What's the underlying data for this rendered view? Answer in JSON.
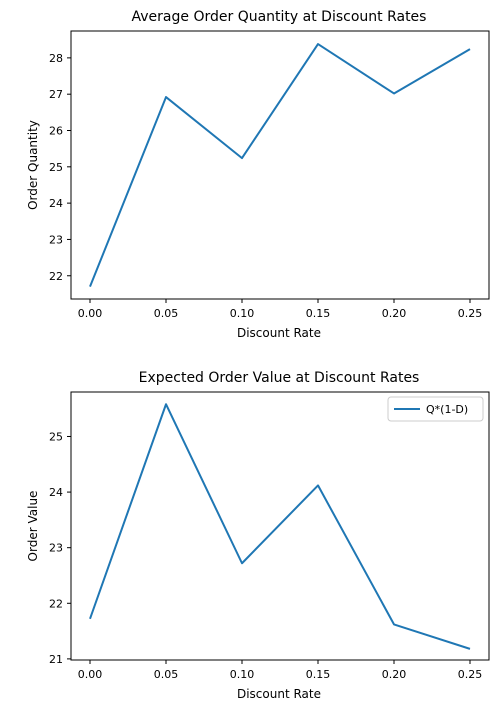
{
  "chart_data": [
    {
      "type": "line",
      "title": "Average Order Quantity at Discount Rates",
      "xlabel": "Discount Rate",
      "ylabel": "Order Quantity",
      "x": [
        0.0,
        0.05,
        0.1,
        0.15,
        0.2,
        0.25
      ],
      "xlim": [
        -0.0125,
        0.2625
      ],
      "ylim": [
        21.36,
        28.74
      ],
      "xticks": [
        0.0,
        0.05,
        0.1,
        0.15,
        0.2,
        0.25
      ],
      "xtick_labels": [
        "0.00",
        "0.05",
        "0.10",
        "0.15",
        "0.20",
        "0.25"
      ],
      "yticks": [
        22,
        23,
        24,
        25,
        26,
        27,
        28
      ],
      "ytick_labels": [
        "22",
        "23",
        "24",
        "25",
        "26",
        "27",
        "28"
      ],
      "grid": false,
      "series": [
        {
          "values": [
            21.7,
            26.92,
            25.24,
            28.38,
            27.02,
            28.24
          ],
          "color": "#1f77b4"
        }
      ]
    },
    {
      "type": "line",
      "title": "Expected Order Value at Discount Rates",
      "xlabel": "Discount Rate",
      "ylabel": "Order Value",
      "x": [
        0.0,
        0.05,
        0.1,
        0.15,
        0.2,
        0.25
      ],
      "xlim": [
        -0.0125,
        0.2625
      ],
      "ylim": [
        20.98,
        25.8
      ],
      "xticks": [
        0.0,
        0.05,
        0.1,
        0.15,
        0.2,
        0.25
      ],
      "xtick_labels": [
        "0.00",
        "0.05",
        "0.10",
        "0.15",
        "0.20",
        "0.25"
      ],
      "yticks": [
        21,
        22,
        23,
        24,
        25
      ],
      "ytick_labels": [
        "21",
        "22",
        "23",
        "24",
        "25"
      ],
      "grid": false,
      "legend": "top-right",
      "series": [
        {
          "name": "Q*(1-D)",
          "values": [
            21.72,
            25.58,
            22.72,
            24.12,
            21.62,
            21.18
          ],
          "color": "#1f77b4"
        }
      ]
    }
  ]
}
